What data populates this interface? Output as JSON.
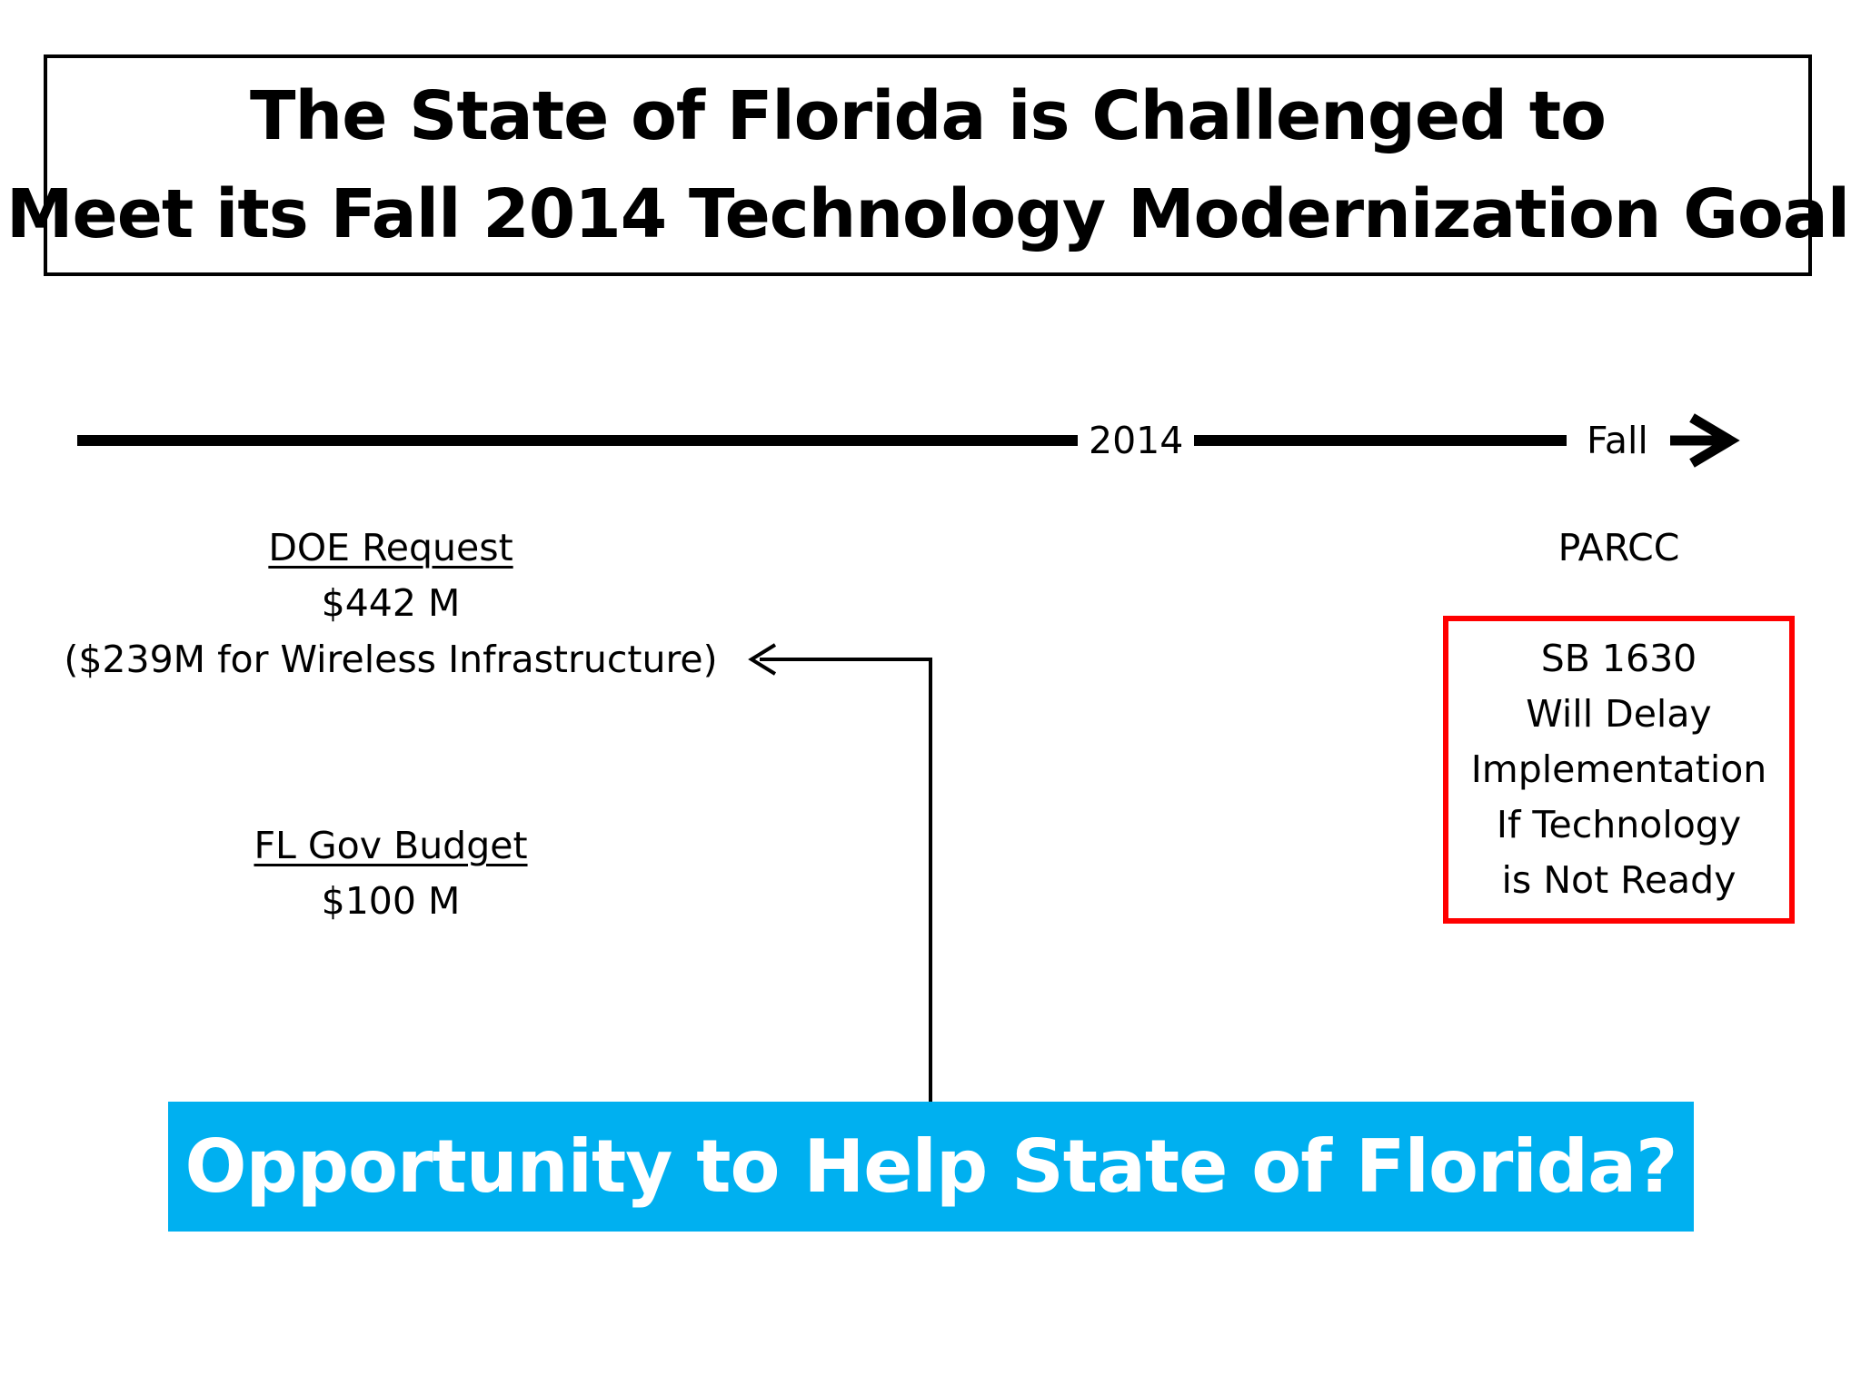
{
  "title": {
    "line1": "The State of Florida is Challenged to",
    "line2": "Meet its Fall 2014 Technology Modernization Goal"
  },
  "timeline": {
    "year_label": "2014",
    "season_label": "Fall",
    "event_label": "PARCC"
  },
  "doe_request": {
    "heading": "DOE Request",
    "amount": "$442 M",
    "detail": "($239M for Wireless Infrastructure)"
  },
  "gov_budget": {
    "heading": "FL Gov Budget",
    "amount": "$100 M"
  },
  "sb_box": {
    "lines": [
      "SB 1630",
      "Will Delay",
      "Implementation",
      "If Technology",
      "is Not Ready"
    ],
    "border_color": "#ff0000"
  },
  "banner": {
    "text": "Opportunity to Help State of Florida?",
    "background_color": "#00b0f0",
    "text_color": "#ffffff"
  }
}
